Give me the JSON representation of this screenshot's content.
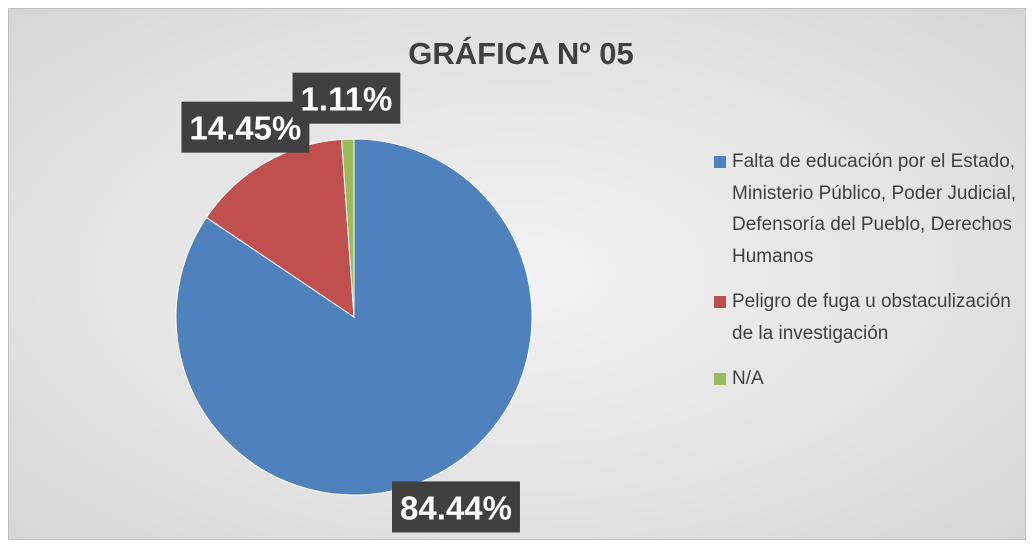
{
  "chart_data": {
    "type": "pie",
    "title": "GRÁFICA Nº 05",
    "categories": [
      "Falta de educación por el Estado, Ministerio Público, Poder Judicial, Defensoría del Pueblo, Derechos Humanos",
      "Peligro de fuga u obstaculización de la investigación",
      "N/A"
    ],
    "values": [
      84.44,
      14.45,
      1.11
    ],
    "value_labels": [
      "84.44%",
      "14.45%",
      "1.11%"
    ],
    "colors": [
      "#4f81bd",
      "#c0504d",
      "#9bbb59"
    ],
    "legend": "right"
  }
}
